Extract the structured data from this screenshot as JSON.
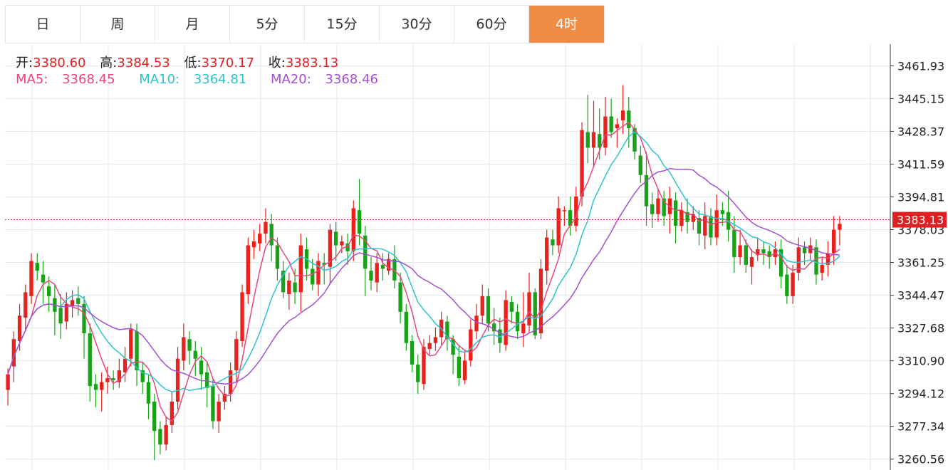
{
  "tabs": [
    {
      "label": "日",
      "active": false
    },
    {
      "label": "周",
      "active": false
    },
    {
      "label": "月",
      "active": false
    },
    {
      "label": "5分",
      "active": false
    },
    {
      "label": "15分",
      "active": false
    },
    {
      "label": "30分",
      "active": false
    },
    {
      "label": "60分",
      "active": false
    },
    {
      "label": "4时",
      "active": true
    }
  ],
  "ohlc": {
    "open_label": "开:",
    "open": "3380.60",
    "high_label": "高:",
    "high": "3384.53",
    "low_label": "低:",
    "low": "3370.17",
    "close_label": "收:",
    "close": "3383.13"
  },
  "ma": {
    "ma5_label": "MA5:",
    "ma5": "3368.45",
    "ma10_label": "MA10:",
    "ma10": "3364.81",
    "ma20_label": "MA20:",
    "ma20": "3368.46"
  },
  "colors": {
    "up": "#e8211c",
    "down": "#19a219",
    "ma5": "#e8467c",
    "ma10": "#2fc2d0",
    "ma20": "#a64fcf",
    "grid": "#e1e8ef",
    "active_tab": "#f08c44",
    "price_line": "#e02020"
  },
  "chart_data": {
    "type": "candlestick",
    "price_axis_ticks": [
      3461.93,
      3445.15,
      3428.37,
      3411.59,
      3394.81,
      3378.03,
      3361.25,
      3344.47,
      3327.68,
      3310.9,
      3294.12,
      3277.34,
      3260.56
    ],
    "price_axis_labels": [
      "3461.93",
      "3445.15",
      "3428.37",
      "3411.59",
      "3394.81",
      "3378.03",
      "3361.25",
      "3344.47",
      "3327.68",
      "3310.90",
      "3294.12",
      "3277.34",
      "3260.56"
    ],
    "ylim": [
      3255,
      3473
    ],
    "current_price": 3383.13,
    "current_price_label": "3383.13",
    "candles": [
      [
        3296,
        3304,
        3288,
        3307
      ],
      [
        3308,
        3322,
        3300,
        3326
      ],
      [
        3321,
        3334,
        3316,
        3340
      ],
      [
        3333,
        3346,
        3326,
        3350
      ],
      [
        3344,
        3362,
        3340,
        3366
      ],
      [
        3361,
        3357,
        3352,
        3366
      ],
      [
        3355,
        3351,
        3340,
        3362
      ],
      [
        3349,
        3344,
        3336,
        3354
      ],
      [
        3343,
        3336,
        3324,
        3350
      ],
      [
        3338,
        3330,
        3322,
        3345
      ],
      [
        3331,
        3340,
        3327,
        3346
      ],
      [
        3339,
        3342,
        3333,
        3347
      ],
      [
        3343,
        3340,
        3334,
        3349
      ],
      [
        3340,
        3325,
        3312,
        3344
      ],
      [
        3325,
        3298,
        3290,
        3330
      ],
      [
        3299,
        3296,
        3287,
        3304
      ],
      [
        3296,
        3300,
        3285,
        3305
      ],
      [
        3300,
        3302,
        3294,
        3308
      ],
      [
        3302,
        3301,
        3296,
        3306
      ],
      [
        3300,
        3306,
        3297,
        3312
      ],
      [
        3305,
        3312,
        3300,
        3318
      ],
      [
        3312,
        3327,
        3308,
        3330
      ],
      [
        3326,
        3306,
        3298,
        3330
      ],
      [
        3306,
        3300,
        3294,
        3310
      ],
      [
        3300,
        3289,
        3281,
        3304
      ],
      [
        3290,
        3275,
        3260,
        3294
      ],
      [
        3276,
        3268,
        3263,
        3280
      ],
      [
        3268,
        3278,
        3265,
        3282
      ],
      [
        3278,
        3290,
        3274,
        3295
      ],
      [
        3290,
        3312,
        3286,
        3318
      ],
      [
        3311,
        3323,
        3306,
        3330
      ],
      [
        3322,
        3316,
        3309,
        3326
      ],
      [
        3316,
        3312,
        3303,
        3321
      ],
      [
        3311,
        3304,
        3296,
        3318
      ],
      [
        3305,
        3297,
        3287,
        3310
      ],
      [
        3298,
        3280,
        3276,
        3302
      ],
      [
        3280,
        3290,
        3274,
        3294
      ],
      [
        3290,
        3294,
        3286,
        3298
      ],
      [
        3294,
        3306,
        3290,
        3310
      ],
      [
        3306,
        3322,
        3300,
        3326
      ],
      [
        3321,
        3346,
        3318,
        3350
      ],
      [
        3345,
        3370,
        3340,
        3374
      ],
      [
        3369,
        3372,
        3363,
        3378
      ],
      [
        3371,
        3376,
        3367,
        3381
      ],
      [
        3376,
        3382,
        3371,
        3389
      ],
      [
        3381,
        3370,
        3362,
        3386
      ],
      [
        3370,
        3358,
        3352,
        3374
      ],
      [
        3357,
        3346,
        3343,
        3362
      ],
      [
        3345,
        3352,
        3337,
        3356
      ],
      [
        3351,
        3346,
        3340,
        3358
      ],
      [
        3346,
        3370,
        3336,
        3376
      ],
      [
        3368,
        3358,
        3352,
        3374
      ],
      [
        3358,
        3350,
        3347,
        3363
      ],
      [
        3350,
        3362,
        3344,
        3366
      ],
      [
        3361,
        3360,
        3350,
        3366
      ],
      [
        3359,
        3378,
        3350,
        3381
      ],
      [
        3377,
        3370,
        3362,
        3382
      ],
      [
        3370,
        3372,
        3366,
        3375
      ],
      [
        3371,
        3367,
        3360,
        3376
      ],
      [
        3367,
        3389,
        3362,
        3393
      ],
      [
        3388,
        3376,
        3370,
        3404
      ],
      [
        3375,
        3358,
        3344,
        3380
      ],
      [
        3357,
        3352,
        3347,
        3364
      ],
      [
        3351,
        3361,
        3346,
        3366
      ],
      [
        3360,
        3358,
        3352,
        3366
      ],
      [
        3357,
        3363,
        3355,
        3366
      ],
      [
        3363,
        3352,
        3348,
        3370
      ],
      [
        3351,
        3336,
        3330,
        3356
      ],
      [
        3336,
        3320,
        3316,
        3340
      ],
      [
        3321,
        3309,
        3305,
        3324
      ],
      [
        3309,
        3300,
        3294,
        3314
      ],
      [
        3299,
        3318,
        3296,
        3322
      ],
      [
        3317,
        3320,
        3314,
        3324
      ],
      [
        3320,
        3323,
        3316,
        3328
      ],
      [
        3323,
        3332,
        3319,
        3336
      ],
      [
        3331,
        3322,
        3316,
        3334
      ],
      [
        3322,
        3314,
        3304,
        3324
      ],
      [
        3313,
        3302,
        3298,
        3319
      ],
      [
        3301,
        3311,
        3299,
        3316
      ],
      [
        3311,
        3327,
        3308,
        3332
      ],
      [
        3326,
        3334,
        3322,
        3340
      ],
      [
        3334,
        3344,
        3330,
        3350
      ],
      [
        3344,
        3330,
        3326,
        3348
      ],
      [
        3330,
        3326,
        3319,
        3338
      ],
      [
        3327,
        3320,
        3315,
        3333
      ],
      [
        3319,
        3342,
        3316,
        3347
      ],
      [
        3341,
        3336,
        3330,
        3344
      ],
      [
        3336,
        3326,
        3322,
        3340
      ],
      [
        3325,
        3330,
        3318,
        3346
      ],
      [
        3329,
        3346,
        3325,
        3356
      ],
      [
        3346,
        3324,
        3322,
        3348
      ],
      [
        3325,
        3358,
        3322,
        3363
      ],
      [
        3357,
        3374,
        3350,
        3378
      ],
      [
        3373,
        3370,
        3365,
        3378
      ],
      [
        3370,
        3389,
        3366,
        3395
      ],
      [
        3388,
        3388,
        3380,
        3390
      ],
      [
        3388,
        3380,
        3375,
        3395
      ],
      [
        3380,
        3395,
        3377,
        3400
      ],
      [
        3395,
        3429,
        3390,
        3433
      ],
      [
        3428,
        3420,
        3412,
        3447
      ],
      [
        3420,
        3428,
        3410,
        3444
      ],
      [
        3427,
        3420,
        3414,
        3440
      ],
      [
        3420,
        3436,
        3416,
        3446
      ],
      [
        3436,
        3428,
        3425,
        3445
      ],
      [
        3430,
        3432,
        3420,
        3435
      ],
      [
        3434,
        3439,
        3427,
        3452
      ],
      [
        3439,
        3430,
        3420,
        3446
      ],
      [
        3430,
        3418,
        3414,
        3432
      ],
      [
        3416,
        3406,
        3402,
        3421
      ],
      [
        3406,
        3390,
        3380,
        3418
      ],
      [
        3391,
        3386,
        3379,
        3397
      ],
      [
        3386,
        3394,
        3382,
        3399
      ],
      [
        3394,
        3385,
        3380,
        3398
      ],
      [
        3386,
        3394,
        3376,
        3400
      ],
      [
        3393,
        3380,
        3371,
        3397
      ],
      [
        3380,
        3388,
        3377,
        3392
      ],
      [
        3387,
        3382,
        3376,
        3394
      ],
      [
        3382,
        3386,
        3378,
        3390
      ],
      [
        3384,
        3376,
        3370,
        3388
      ],
      [
        3375,
        3385,
        3368,
        3392
      ],
      [
        3385,
        3374,
        3370,
        3389
      ],
      [
        3374,
        3388,
        3370,
        3396
      ],
      [
        3388,
        3386,
        3380,
        3392
      ],
      [
        3387,
        3378,
        3372,
        3398
      ],
      [
        3378,
        3364,
        3356,
        3385
      ],
      [
        3364,
        3370,
        3360,
        3378
      ],
      [
        3370,
        3360,
        3356,
        3373
      ],
      [
        3359,
        3364,
        3350,
        3368
      ],
      [
        3365,
        3368,
        3362,
        3374
      ],
      [
        3368,
        3366,
        3360,
        3372
      ],
      [
        3367,
        3364,
        3358,
        3370
      ],
      [
        3364,
        3368,
        3360,
        3372
      ],
      [
        3368,
        3354,
        3348,
        3373
      ],
      [
        3355,
        3344,
        3340,
        3360
      ],
      [
        3344,
        3356,
        3340,
        3360
      ],
      [
        3356,
        3369,
        3352,
        3374
      ],
      [
        3369,
        3366,
        3360,
        3372
      ],
      [
        3366,
        3370,
        3362,
        3374
      ],
      [
        3369,
        3355,
        3350,
        3373
      ],
      [
        3356,
        3360,
        3352,
        3364
      ],
      [
        3360,
        3366,
        3354,
        3372
      ],
      [
        3366,
        3378,
        3360,
        3385
      ],
      [
        3378,
        3381,
        3370,
        3385
      ]
    ]
  }
}
